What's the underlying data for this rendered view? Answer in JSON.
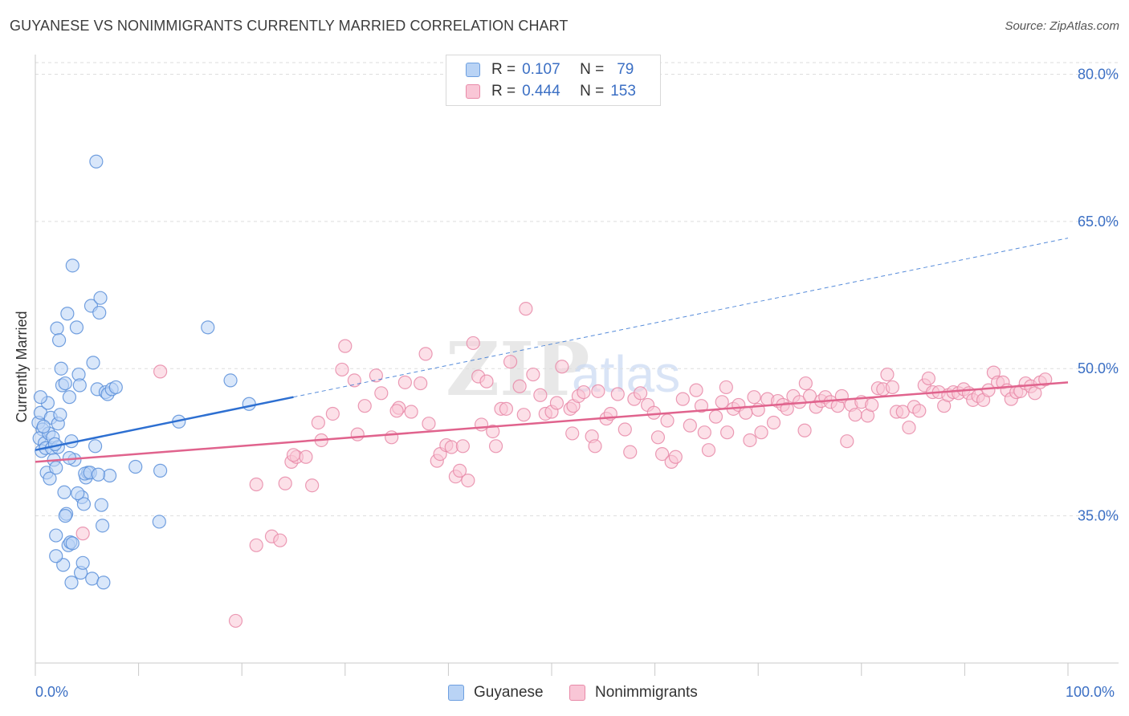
{
  "header": {
    "title": "GUYANESE VS NONIMMIGRANTS CURRENTLY MARRIED CORRELATION CHART",
    "source": "Source: ZipAtlas.com"
  },
  "watermark": {
    "zip": "ZIP",
    "atlas": "atlas"
  },
  "legend": {
    "r_label": "R =",
    "n_label": "N =",
    "series": [
      {
        "name": "Guyanese",
        "r": "0.107",
        "n": "79",
        "fill": "#b9d3f5",
        "stroke": "#6d9fe0"
      },
      {
        "name": "Nonimmigrants",
        "r": "0.444",
        "n": "153",
        "fill": "#f9c6d6",
        "stroke": "#e88aa8"
      }
    ]
  },
  "chart_data": {
    "type": "scatter",
    "title": "GUYANESE VS NONIMMIGRANTS CURRENTLY MARRIED CORRELATION CHART",
    "xlabel": "",
    "ylabel": "Currently Married",
    "xlim": [
      0,
      100
    ],
    "ylim": [
      20,
      82
    ],
    "x_tick_labels": [
      "0.0%",
      "100.0%"
    ],
    "y_ticks": [
      35,
      50,
      65,
      80
    ],
    "y_tick_labels": [
      "35.0%",
      "50.0%",
      "65.0%",
      "80.0%"
    ],
    "grid": true,
    "legend_position": "top-center",
    "colors": {
      "guyanese": "#5b8fd9",
      "guyanese_line": "#2d6fd1",
      "nonimmigrants": "#eb7fa0",
      "nonimmigrants_line": "#e0638d",
      "tick_label": "#3b6fc4"
    },
    "series": [
      {
        "name": "Guyanese",
        "trend": {
          "x0": 0,
          "y0": 41.7,
          "x1": 25,
          "y1": 47.1,
          "dashed_to_x": 100,
          "dashed_to_y": 63.3
        },
        "points": [
          [
            0.3,
            44.5
          ],
          [
            0.5,
            45.5
          ],
          [
            0.7,
            43.8
          ],
          [
            0.4,
            42.9
          ],
          [
            0.9,
            42.4
          ],
          [
            0.6,
            41.6
          ],
          [
            1.0,
            41.9
          ],
          [
            1.2,
            46.5
          ],
          [
            1.5,
            45.0
          ],
          [
            1.3,
            43.4
          ],
          [
            1.6,
            41.9
          ],
          [
            1.8,
            40.7
          ],
          [
            1.1,
            39.4
          ],
          [
            1.4,
            38.8
          ],
          [
            2.0,
            39.9
          ],
          [
            2.2,
            44.4
          ],
          [
            2.4,
            45.3
          ],
          [
            2.1,
            54.1
          ],
          [
            2.3,
            52.9
          ],
          [
            2.5,
            50.0
          ],
          [
            2.6,
            48.3
          ],
          [
            2.9,
            48.5
          ],
          [
            3.1,
            55.6
          ],
          [
            3.3,
            47.1
          ],
          [
            3.5,
            42.6
          ],
          [
            3.8,
            40.7
          ],
          [
            3.6,
            60.5
          ],
          [
            4.0,
            54.2
          ],
          [
            4.2,
            49.4
          ],
          [
            4.3,
            48.3
          ],
          [
            4.5,
            36.9
          ],
          [
            4.7,
            36.2
          ],
          [
            4.9,
            38.9
          ],
          [
            5.1,
            39.4
          ],
          [
            5.4,
            56.4
          ],
          [
            5.6,
            50.6
          ],
          [
            5.8,
            42.1
          ],
          [
            6.0,
            47.9
          ],
          [
            6.2,
            55.7
          ],
          [
            6.4,
            36.1
          ],
          [
            6.5,
            34.0
          ],
          [
            6.8,
            47.6
          ],
          [
            7.0,
            47.4
          ],
          [
            7.2,
            39.1
          ],
          [
            7.4,
            47.9
          ],
          [
            5.9,
            71.1
          ],
          [
            2.8,
            37.4
          ],
          [
            3.0,
            35.2
          ],
          [
            3.2,
            32.0
          ],
          [
            3.4,
            32.3
          ],
          [
            2.7,
            30.0
          ],
          [
            2.0,
            30.9
          ],
          [
            2.0,
            33.0
          ],
          [
            3.5,
            28.2
          ],
          [
            4.4,
            29.2
          ],
          [
            4.6,
            30.2
          ],
          [
            5.5,
            28.6
          ],
          [
            6.6,
            28.2
          ],
          [
            3.6,
            32.2
          ],
          [
            4.1,
            37.3
          ],
          [
            4.8,
            39.3
          ],
          [
            5.3,
            39.4
          ],
          [
            6.1,
            39.2
          ],
          [
            7.8,
            48.1
          ],
          [
            9.7,
            40.0
          ],
          [
            12.0,
            34.4
          ],
          [
            12.1,
            39.6
          ],
          [
            13.9,
            44.6
          ],
          [
            16.7,
            54.2
          ],
          [
            18.9,
            48.8
          ],
          [
            20.7,
            46.4
          ],
          [
            0.5,
            47.1
          ],
          [
            0.8,
            44.1
          ],
          [
            1.7,
            43.0
          ],
          [
            2.2,
            42.0
          ],
          [
            3.3,
            40.9
          ],
          [
            2.9,
            35.0
          ],
          [
            1.9,
            42.3
          ],
          [
            6.3,
            57.2
          ]
        ]
      },
      {
        "name": "Nonimmigrants",
        "trend": {
          "x0": 0,
          "y0": 40.5,
          "x1": 100,
          "y1": 48.6
        },
        "points": [
          [
            4.6,
            33.2
          ],
          [
            19.4,
            24.3
          ],
          [
            21.4,
            38.2
          ],
          [
            21.4,
            32.0
          ],
          [
            22.9,
            32.9
          ],
          [
            23.7,
            32.5
          ],
          [
            24.2,
            38.3
          ],
          [
            24.8,
            40.5
          ],
          [
            25.3,
            41.0
          ],
          [
            26.2,
            41.0
          ],
          [
            26.8,
            38.1
          ],
          [
            27.4,
            44.5
          ],
          [
            27.7,
            42.7
          ],
          [
            28.8,
            45.4
          ],
          [
            29.7,
            49.9
          ],
          [
            30.0,
            52.3
          ],
          [
            30.9,
            48.8
          ],
          [
            31.2,
            43.3
          ],
          [
            31.9,
            46.2
          ],
          [
            33.0,
            49.3
          ],
          [
            33.5,
            47.5
          ],
          [
            34.5,
            43.0
          ],
          [
            35.2,
            46.0
          ],
          [
            35.8,
            48.6
          ],
          [
            36.4,
            45.6
          ],
          [
            37.3,
            48.5
          ],
          [
            37.8,
            51.5
          ],
          [
            38.1,
            44.4
          ],
          [
            38.9,
            40.6
          ],
          [
            39.2,
            41.3
          ],
          [
            39.8,
            42.2
          ],
          [
            40.3,
            42.0
          ],
          [
            40.7,
            39.0
          ],
          [
            41.1,
            39.6
          ],
          [
            41.4,
            42.1
          ],
          [
            41.9,
            38.6
          ],
          [
            42.4,
            52.6
          ],
          [
            42.9,
            49.2
          ],
          [
            43.2,
            44.3
          ],
          [
            43.7,
            48.7
          ],
          [
            44.3,
            43.6
          ],
          [
            44.6,
            42.1
          ],
          [
            45.1,
            45.9
          ],
          [
            46.0,
            50.7
          ],
          [
            46.9,
            48.2
          ],
          [
            47.3,
            45.3
          ],
          [
            47.5,
            56.1
          ],
          [
            48.2,
            49.4
          ],
          [
            48.9,
            47.3
          ],
          [
            49.4,
            45.4
          ],
          [
            50.0,
            45.6
          ],
          [
            50.5,
            46.5
          ],
          [
            51.0,
            50.2
          ],
          [
            51.8,
            45.9
          ],
          [
            52.1,
            46.2
          ],
          [
            52.6,
            47.2
          ],
          [
            53.1,
            47.6
          ],
          [
            53.9,
            43.1
          ],
          [
            54.2,
            42.1
          ],
          [
            54.5,
            47.7
          ],
          [
            55.3,
            44.9
          ],
          [
            55.7,
            45.4
          ],
          [
            56.4,
            47.4
          ],
          [
            57.1,
            43.8
          ],
          [
            57.6,
            41.5
          ],
          [
            58.0,
            46.9
          ],
          [
            58.6,
            47.5
          ],
          [
            59.3,
            46.3
          ],
          [
            59.9,
            45.5
          ],
          [
            60.3,
            43.0
          ],
          [
            60.7,
            41.3
          ],
          [
            61.2,
            44.7
          ],
          [
            61.6,
            40.5
          ],
          [
            62.0,
            41.0
          ],
          [
            62.7,
            46.9
          ],
          [
            63.4,
            44.2
          ],
          [
            64.0,
            47.8
          ],
          [
            64.5,
            46.2
          ],
          [
            64.8,
            43.5
          ],
          [
            65.2,
            41.7
          ],
          [
            65.9,
            45.1
          ],
          [
            66.5,
            46.6
          ],
          [
            67.0,
            43.5
          ],
          [
            67.6,
            45.9
          ],
          [
            68.1,
            46.3
          ],
          [
            68.8,
            45.5
          ],
          [
            69.2,
            42.7
          ],
          [
            69.6,
            47.1
          ],
          [
            70.0,
            45.8
          ],
          [
            70.3,
            43.5
          ],
          [
            70.9,
            46.9
          ],
          [
            71.5,
            44.5
          ],
          [
            71.9,
            46.7
          ],
          [
            72.4,
            46.3
          ],
          [
            72.8,
            45.9
          ],
          [
            73.4,
            47.2
          ],
          [
            74.0,
            46.6
          ],
          [
            74.5,
            43.7
          ],
          [
            75.0,
            47.2
          ],
          [
            75.6,
            46.1
          ],
          [
            76.1,
            46.7
          ],
          [
            76.5,
            47.1
          ],
          [
            77.0,
            46.6
          ],
          [
            77.7,
            46.2
          ],
          [
            78.1,
            47.2
          ],
          [
            78.6,
            42.6
          ],
          [
            79.0,
            46.3
          ],
          [
            79.4,
            45.3
          ],
          [
            80.0,
            46.6
          ],
          [
            80.6,
            45.2
          ],
          [
            81.0,
            46.3
          ],
          [
            81.6,
            48.0
          ],
          [
            82.1,
            47.9
          ],
          [
            82.5,
            49.4
          ],
          [
            83.0,
            48.1
          ],
          [
            83.4,
            45.6
          ],
          [
            84.0,
            45.6
          ],
          [
            84.6,
            44.0
          ],
          [
            85.1,
            46.1
          ],
          [
            85.6,
            45.7
          ],
          [
            86.1,
            48.3
          ],
          [
            86.5,
            49.0
          ],
          [
            86.9,
            47.6
          ],
          [
            87.5,
            47.6
          ],
          [
            88.0,
            46.2
          ],
          [
            88.4,
            47.3
          ],
          [
            88.9,
            47.6
          ],
          [
            89.4,
            47.5
          ],
          [
            89.9,
            47.9
          ],
          [
            90.4,
            47.5
          ],
          [
            90.8,
            46.8
          ],
          [
            91.3,
            47.2
          ],
          [
            91.8,
            46.8
          ],
          [
            92.3,
            47.8
          ],
          [
            92.8,
            49.6
          ],
          [
            93.2,
            48.6
          ],
          [
            93.7,
            48.6
          ],
          [
            94.1,
            47.8
          ],
          [
            94.5,
            46.9
          ],
          [
            95.0,
            47.6
          ],
          [
            95.4,
            47.7
          ],
          [
            95.9,
            48.5
          ],
          [
            96.4,
            48.2
          ],
          [
            96.8,
            47.5
          ],
          [
            97.3,
            48.6
          ],
          [
            97.8,
            48.9
          ],
          [
            12.1,
            49.7
          ],
          [
            25.0,
            41.2
          ],
          [
            35.0,
            45.7
          ],
          [
            45.6,
            45.9
          ],
          [
            52.0,
            43.4
          ],
          [
            66.9,
            48.1
          ],
          [
            74.6,
            48.5
          ]
        ]
      }
    ]
  }
}
